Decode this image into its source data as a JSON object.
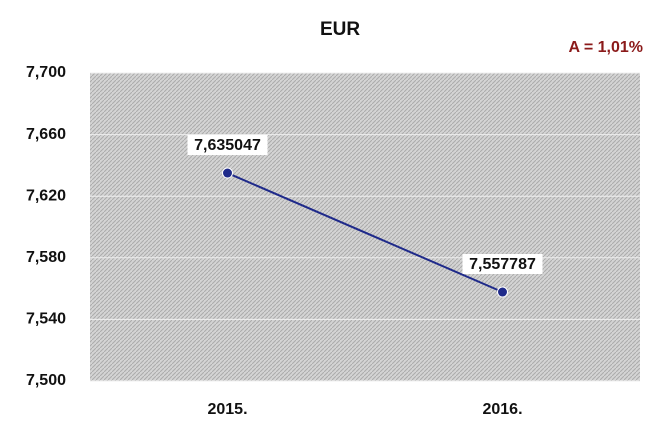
{
  "chart_data": {
    "type": "line",
    "title": "EUR",
    "annotation": "A = 1,01%",
    "annotation_color": "#8b1a1a",
    "categories": [
      "2015.",
      "2016."
    ],
    "series": [
      {
        "name": "EUR",
        "color": "#1f2a8a",
        "values": [
          7.635047,
          7.557787
        ],
        "value_labels": [
          "7,635047",
          "7,557787"
        ]
      }
    ],
    "ylim": [
      7.5,
      7.7
    ],
    "yticks": [
      {
        "value": 7.5,
        "label": "7,500"
      },
      {
        "value": 7.54,
        "label": "7,540"
      },
      {
        "value": 7.58,
        "label": "7,580"
      },
      {
        "value": 7.62,
        "label": "7,620"
      },
      {
        "value": 7.66,
        "label": "7,660"
      },
      {
        "value": 7.7,
        "label": "7,700"
      }
    ],
    "grid": true
  }
}
